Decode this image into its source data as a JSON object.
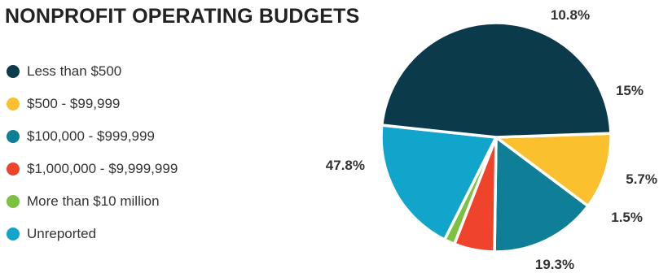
{
  "chart_data": {
    "type": "pie",
    "title": "NONPROFIT OPERATING BUDGETS",
    "slices": [
      {
        "name": "Less than $500",
        "value": 47.8,
        "label": "47.8%",
        "color": "#0b3a4b"
      },
      {
        "name": "$500 - $99,999",
        "value": 10.8,
        "label": "10.8%",
        "color": "#fbc02d"
      },
      {
        "name": "$100,000 - $999,999",
        "value": 15,
        "label": "15%",
        "color": "#0e7f96"
      },
      {
        "name": "$1,000,000 - $9,999,999",
        "value": 5.7,
        "label": "5.7%",
        "color": "#ef432c"
      },
      {
        "name": "More than $10 million",
        "value": 1.5,
        "label": "1.5%",
        "color": "#7cc242"
      },
      {
        "name": "Unreported",
        "value": 19.3,
        "label": "19.3%",
        "color": "#11a5cc"
      }
    ],
    "legend_position": "left"
  }
}
